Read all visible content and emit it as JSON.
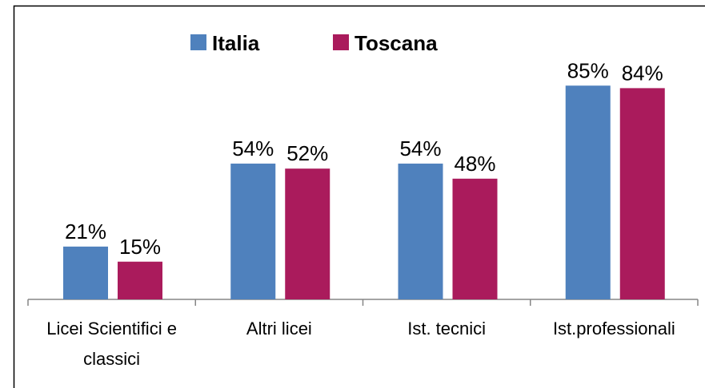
{
  "chart_data": {
    "type": "bar",
    "categories": [
      "Licei Scientifici e classici",
      "Altri licei",
      "Ist. tecnici",
      "Ist.professionali"
    ],
    "series": [
      {
        "name": "Italia",
        "color": "#4f81bd",
        "values": [
          21,
          54,
          54,
          85
        ],
        "value_labels": [
          "21%",
          "54%",
          "54%",
          "85%"
        ]
      },
      {
        "name": "Toscana",
        "color": "#aa1b5c",
        "values": [
          15,
          52,
          48,
          84
        ],
        "value_labels": [
          "15%",
          "52%",
          "48%",
          "84%"
        ]
      }
    ],
    "legend": "top"
  }
}
